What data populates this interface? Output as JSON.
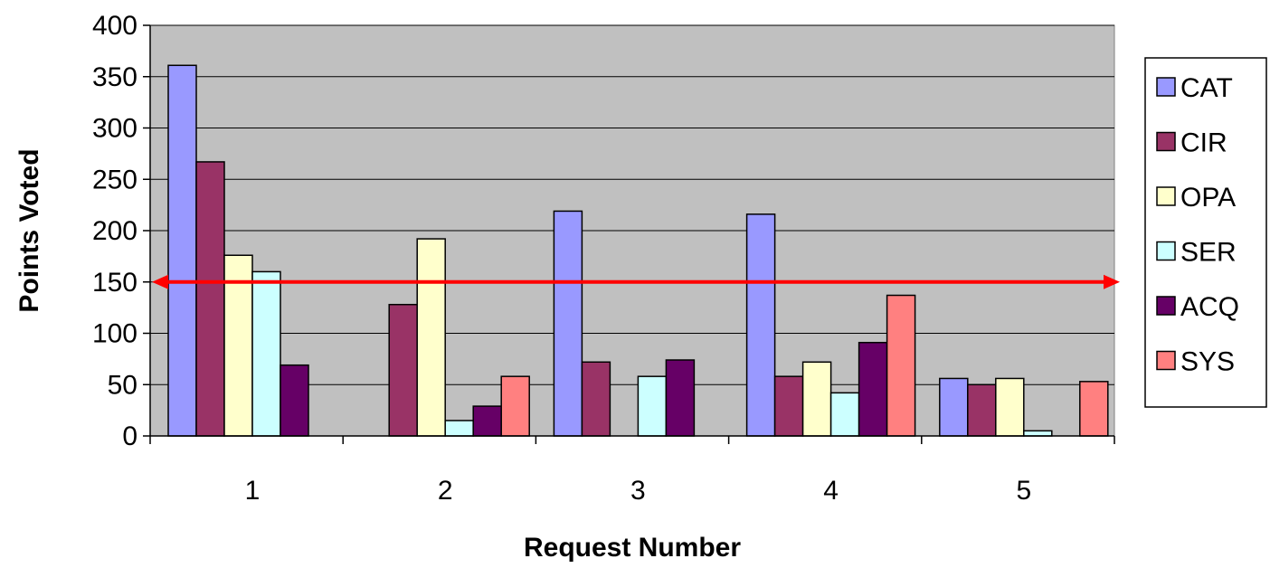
{
  "chart_data": {
    "type": "bar",
    "xlabel": "Request Number",
    "ylabel": "Points Voted",
    "categories": [
      "1",
      "2",
      "3",
      "4",
      "5"
    ],
    "ylim": [
      0,
      400
    ],
    "yticks": [
      0,
      50,
      100,
      150,
      200,
      250,
      300,
      350,
      400
    ],
    "grid": true,
    "legend_position": "right",
    "plot_background": "#c0c0c0",
    "series": [
      {
        "name": "CAT",
        "color": "#9999ff",
        "values": [
          361,
          0,
          219,
          216,
          56
        ]
      },
      {
        "name": "CIR",
        "color": "#993366",
        "values": [
          267,
          128,
          72,
          58,
          50
        ]
      },
      {
        "name": "OPA",
        "color": "#ffffcc",
        "values": [
          176,
          192,
          0,
          72,
          56
        ]
      },
      {
        "name": "SER",
        "color": "#ccffff",
        "values": [
          160,
          15,
          58,
          42,
          5
        ]
      },
      {
        "name": "ACQ",
        "color": "#660066",
        "values": [
          69,
          29,
          74,
          91,
          0
        ]
      },
      {
        "name": "SYS",
        "color": "#ff8080",
        "values": [
          0,
          58,
          0,
          137,
          53
        ]
      }
    ],
    "reference_line": {
      "value": 150,
      "color": "#ff0000",
      "style": "double-arrow"
    }
  }
}
